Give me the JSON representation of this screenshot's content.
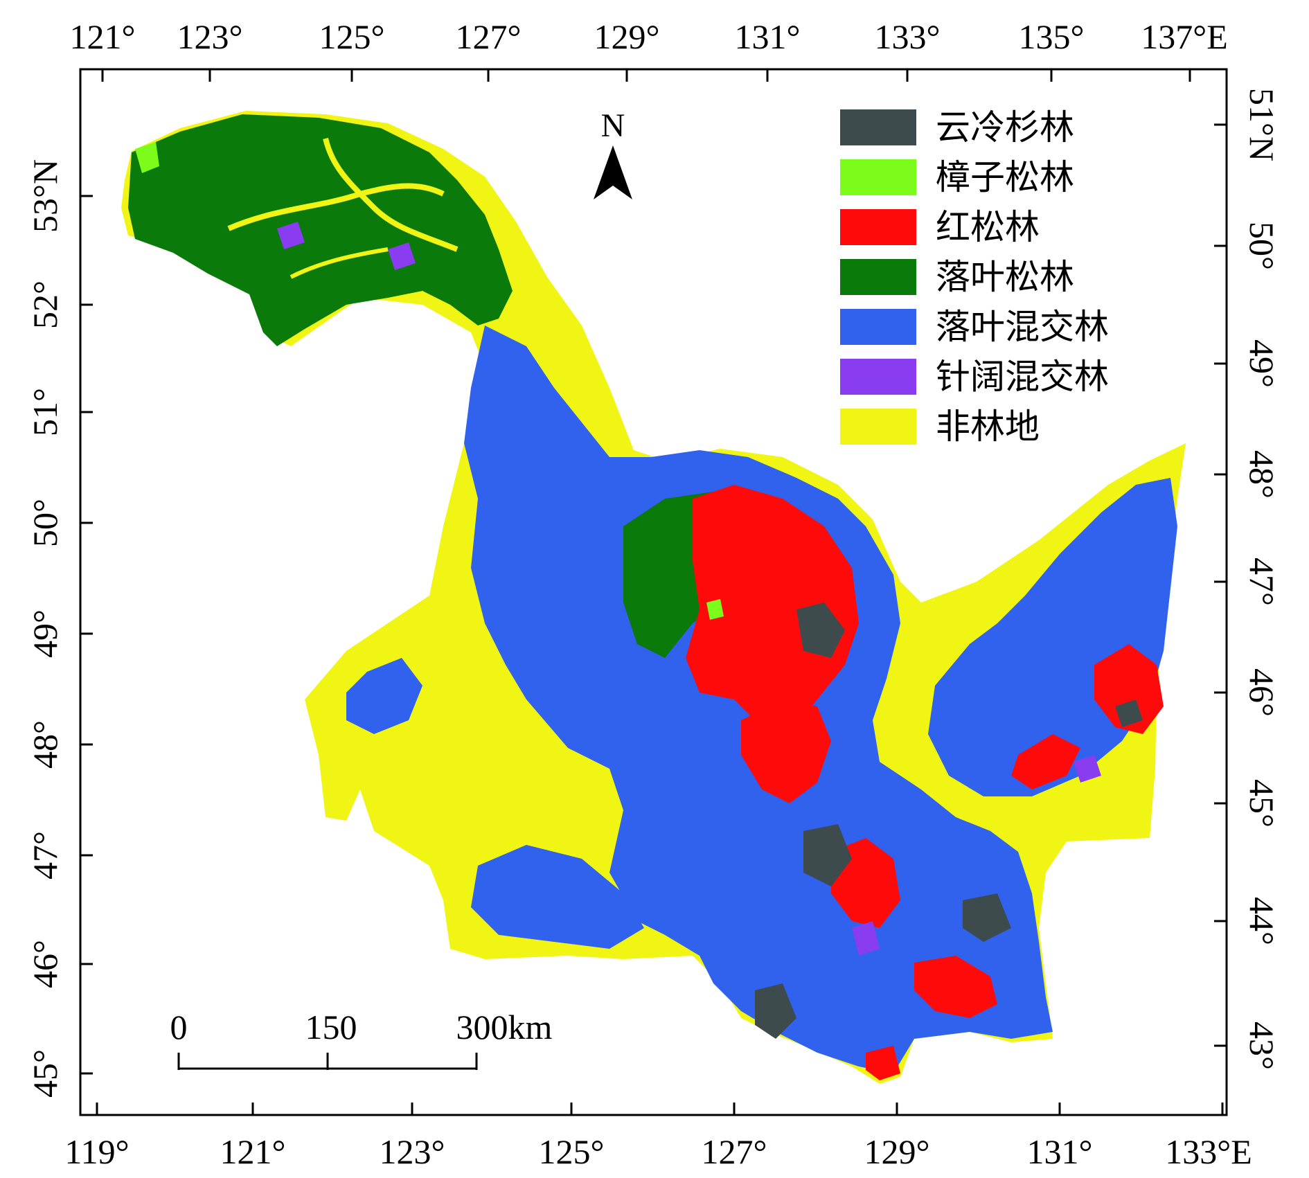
{
  "map": {
    "top_axis_labels": [
      "121°",
      "123°",
      "125°",
      "127°",
      "129°",
      "131°",
      "133°",
      "135°",
      "137°E"
    ],
    "bottom_axis_labels": [
      "119°",
      "121°",
      "123°",
      "125°",
      "127°",
      "129°",
      "131°",
      "133°E"
    ],
    "left_axis_labels": [
      "53°N",
      "52°",
      "51°",
      "50°",
      "49°",
      "48°",
      "47°",
      "46°",
      "45°"
    ],
    "right_axis_labels": [
      "51°N",
      "50°",
      "49°",
      "48°",
      "47°",
      "46°",
      "45°",
      "44°",
      "43°"
    ],
    "north_arrow_label": "N",
    "scale_bar": {
      "labels": [
        "0",
        "150",
        "300km"
      ]
    },
    "legend": [
      {
        "label": "云冷杉林",
        "color": "#3e4b4d"
      },
      {
        "label": "樟子松林",
        "color": "#7cfc1a"
      },
      {
        "label": "红松林",
        "color": "#ff0a0a"
      },
      {
        "label": "落叶松林",
        "color": "#0a7a0a"
      },
      {
        "label": "落叶混交林",
        "color": "#3062ee"
      },
      {
        "label": "针阔混交林",
        "color": "#8a3cf0"
      },
      {
        "label": "非林地",
        "color": "#f0f514"
      }
    ]
  }
}
